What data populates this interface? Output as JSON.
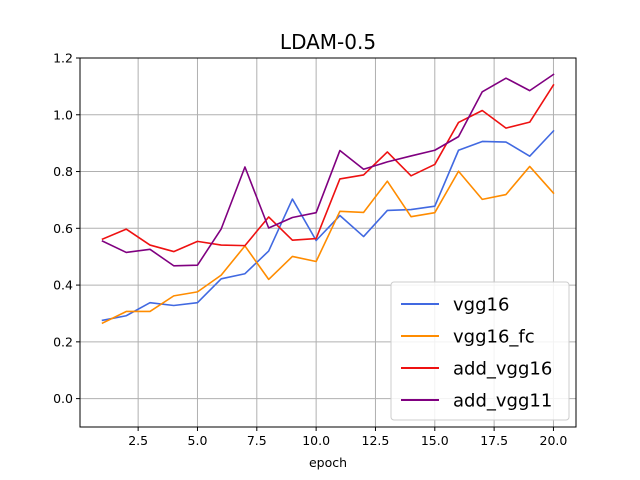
{
  "chart_data": {
    "type": "line",
    "title": "LDAM-0.5",
    "xlabel": "epoch",
    "ylabel": "",
    "xlim": [
      0.05,
      20.95
    ],
    "ylim": [
      -0.1,
      1.2
    ],
    "xticks": [
      2.5,
      5.0,
      7.5,
      10.0,
      12.5,
      15.0,
      17.5,
      20.0
    ],
    "xtick_labels": [
      "2.5",
      "5.0",
      "7.5",
      "10.0",
      "12.5",
      "15.0",
      "17.5",
      "20.0"
    ],
    "yticks": [
      0.0,
      0.2,
      0.4,
      0.6,
      0.8,
      1.0,
      1.2
    ],
    "ytick_labels": [
      "0.0",
      "0.2",
      "0.4",
      "0.6",
      "0.8",
      "1.0",
      "1.2"
    ],
    "grid": true,
    "legend_position": "lower-right",
    "x": [
      1,
      2,
      3,
      4,
      5,
      6,
      7,
      8,
      9,
      10,
      11,
      12,
      13,
      14,
      15,
      16,
      17,
      18,
      19,
      20
    ],
    "series": [
      {
        "name": "vgg16",
        "color": "#4169e1",
        "values": [
          0.276,
          0.292,
          0.338,
          0.328,
          0.338,
          0.422,
          0.44,
          0.52,
          0.703,
          0.557,
          0.645,
          0.571,
          0.663,
          0.666,
          0.678,
          0.875,
          0.906,
          0.904,
          0.854,
          0.943
        ]
      },
      {
        "name": "vgg16_fc",
        "color": "#ff8c00",
        "values": [
          0.266,
          0.307,
          0.307,
          0.362,
          0.376,
          0.435,
          0.538,
          0.42,
          0.501,
          0.483,
          0.66,
          0.656,
          0.766,
          0.641,
          0.655,
          0.801,
          0.702,
          0.719,
          0.818,
          0.724
        ]
      },
      {
        "name": "add_vgg16",
        "color": "#ee1111",
        "values": [
          0.562,
          0.597,
          0.541,
          0.518,
          0.554,
          0.541,
          0.539,
          0.64,
          0.558,
          0.564,
          0.774,
          0.788,
          0.869,
          0.785,
          0.825,
          0.973,
          1.015,
          0.953,
          0.974,
          1.105
        ]
      },
      {
        "name": "add_vgg11",
        "color": "#800080",
        "values": [
          0.555,
          0.515,
          0.526,
          0.468,
          0.47,
          0.598,
          0.816,
          0.601,
          0.638,
          0.655,
          0.874,
          0.808,
          0.834,
          0.855,
          0.875,
          0.923,
          1.081,
          1.129,
          1.085,
          1.142
        ]
      }
    ]
  }
}
